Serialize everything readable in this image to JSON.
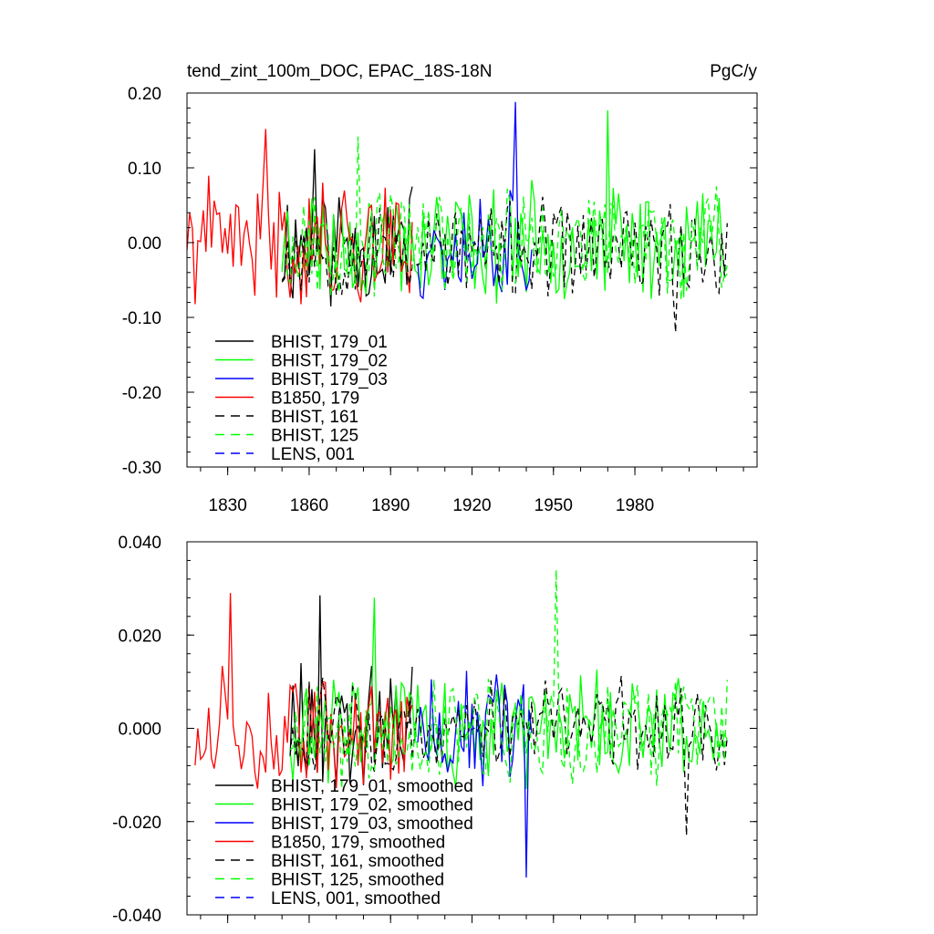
{
  "chart_data": [
    {
      "type": "line",
      "title": "tend_zint_100m_DOC, EPAC_18S-18N",
      "units": "PgC/y",
      "xlim": [
        1815,
        2025
      ],
      "ylim": [
        -0.3,
        0.2
      ],
      "yticks": [
        "0.20",
        "0.10",
        "0.00",
        "-0.10",
        "-0.20",
        "-0.30"
      ],
      "ytick_values": [
        0.2,
        0.1,
        0.0,
        -0.1,
        -0.2,
        -0.3
      ],
      "xticks": [
        "1830",
        "1860",
        "1890",
        "1920",
        "1950",
        "1980"
      ],
      "xtick_values": [
        1830,
        1860,
        1890,
        1920,
        1950,
        1980
      ],
      "legend": {
        "position": "bottom-left"
      },
      "series": [
        {
          "name": "BHIST, 179_01",
          "color": "#000000",
          "dash": "solid",
          "seed": 11,
          "start": 1850,
          "end": 1898,
          "amp": 0.075,
          "mean": 0.0,
          "spike_year": 1862,
          "spike_value": 0.125
        },
        {
          "name": "BHIST, 179_02",
          "color": "#00ff00",
          "dash": "solid",
          "seed": 23,
          "start": 1850,
          "end": 2014,
          "amp": 0.065,
          "mean": 0.0,
          "spike_year": 1970,
          "spike_value": 0.177
        },
        {
          "name": "BHIST, 179_03",
          "color": "#0000ff",
          "dash": "solid",
          "seed": 37,
          "start": 1900,
          "end": 1942,
          "amp": 0.07,
          "mean": 0.0,
          "spike_year": 1936,
          "spike_value": 0.188
        },
        {
          "name": "B1850, 179",
          "color": "#ff0000",
          "dash": "solid",
          "seed": 41,
          "start": 1815,
          "end": 1898,
          "amp": 0.07,
          "mean": 0.0,
          "spike_year": 1844,
          "spike_value": 0.152
        },
        {
          "name": "BHIST, 161",
          "color": "#000000",
          "dash": "dashed",
          "seed": 53,
          "start": 1850,
          "end": 2014,
          "amp": 0.055,
          "mean": -0.01,
          "spike_year": 1995,
          "spike_value": -0.12
        },
        {
          "name": "BHIST, 125",
          "color": "#00ff00",
          "dash": "dashed",
          "seed": 67,
          "start": 1850,
          "end": 2014,
          "amp": 0.06,
          "mean": 0.0,
          "spike_year": 1878,
          "spike_value": 0.142
        },
        {
          "name": "LENS, 001",
          "color": "#0000ff",
          "dash": "dashed",
          "seed": 79,
          "start": 1920,
          "end": 1921,
          "amp": 0.0,
          "mean": 0.0,
          "spike_year": 1920,
          "spike_value": 0.0
        }
      ]
    },
    {
      "type": "line",
      "title": "",
      "units": "",
      "xlim": [
        1815,
        2025
      ],
      "ylim": [
        -0.04,
        0.04
      ],
      "yticks": [
        "0.040",
        "0.020",
        "0.000",
        "-0.020",
        "-0.040"
      ],
      "ytick_values": [
        0.04,
        0.02,
        0.0,
        -0.02,
        -0.04
      ],
      "xticks": [],
      "xtick_values": [
        1830,
        1860,
        1890,
        1920,
        1950,
        1980
      ],
      "legend": {
        "position": "bottom-left"
      },
      "series": [
        {
          "name": "BHIST, 179_01, smoothed",
          "color": "#000000",
          "dash": "solid",
          "seed": 111,
          "start": 1853,
          "end": 1898,
          "amp": 0.011,
          "mean": 0.0,
          "spike_year": 1864,
          "spike_value": 0.0285
        },
        {
          "name": "BHIST, 179_02, smoothed",
          "color": "#00ff00",
          "dash": "solid",
          "seed": 123,
          "start": 1853,
          "end": 2014,
          "amp": 0.01,
          "mean": 0.0,
          "spike_year": 1884,
          "spike_value": 0.028
        },
        {
          "name": "BHIST, 179_03, smoothed",
          "color": "#0000ff",
          "dash": "solid",
          "seed": 137,
          "start": 1900,
          "end": 1942,
          "amp": 0.011,
          "mean": 0.0,
          "spike_year": 1940,
          "spike_value": -0.032
        },
        {
          "name": "B1850, 179, smoothed",
          "color": "#ff0000",
          "dash": "solid",
          "seed": 141,
          "start": 1818,
          "end": 1898,
          "amp": 0.011,
          "mean": 0.0,
          "spike_year": 1831,
          "spike_value": 0.029
        },
        {
          "name": "BHIST, 161, smoothed",
          "color": "#000000",
          "dash": "dashed",
          "seed": 153,
          "start": 1853,
          "end": 2014,
          "amp": 0.009,
          "mean": 0.0,
          "spike_year": 1999,
          "spike_value": -0.023
        },
        {
          "name": "BHIST, 125, smoothed",
          "color": "#00ff00",
          "dash": "dashed",
          "seed": 167,
          "start": 1853,
          "end": 2014,
          "amp": 0.01,
          "mean": 0.0,
          "spike_year": 1951,
          "spike_value": 0.034
        },
        {
          "name": "LENS, 001, smoothed",
          "color": "#0000ff",
          "dash": "dashed",
          "seed": 179,
          "start": 1920,
          "end": 1921,
          "amp": 0.0,
          "mean": 0.0,
          "spike_year": 1920,
          "spike_value": 0.0
        }
      ]
    }
  ]
}
